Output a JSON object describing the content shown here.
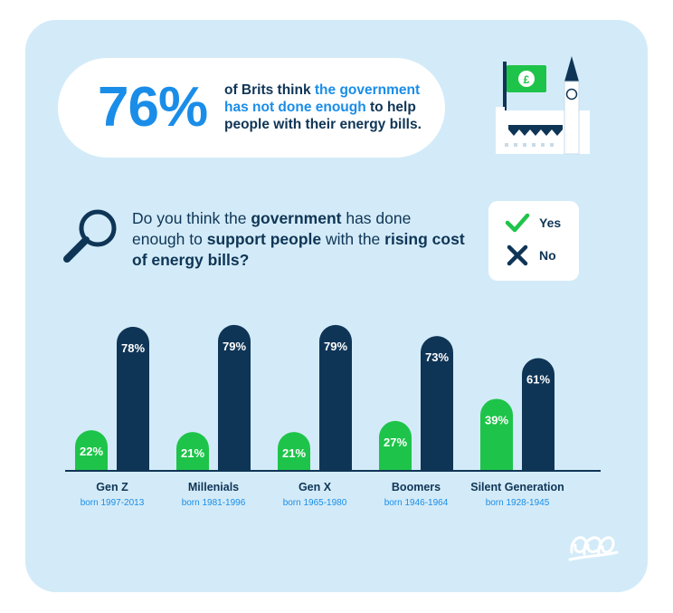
{
  "headline": {
    "percent": "76%",
    "text_before": "of Brits think ",
    "text_highlight": "the government has not done enough",
    "text_after": " to help people with their energy bills."
  },
  "question": {
    "part1": "Do you think the ",
    "bold1": "government",
    "part2": " has done enough to ",
    "bold2": "support people",
    "part3": " with the ",
    "bold3": "rising cost of energy bills?"
  },
  "legend": [
    {
      "label": "Yes",
      "icon": "check-icon",
      "color": "#1ec449"
    },
    {
      "label": "No",
      "icon": "cross-icon",
      "color": "#0f3556"
    }
  ],
  "colors": {
    "yes": "#1ec449",
    "no": "#0f3556",
    "accent": "#1a8de8",
    "background": "#d3ebf8",
    "text": "#0f3556"
  },
  "chart_data": {
    "type": "bar",
    "categories": [
      "Gen Z",
      "Millenials",
      "Gen X",
      "Boomers",
      "Silent Generation"
    ],
    "sublabels": [
      "born 1997-2013",
      "born 1981-1996",
      "born 1965-1980",
      "born 1946-1964",
      "born 1928-1945"
    ],
    "series": [
      {
        "name": "Yes",
        "values": [
          22,
          21,
          21,
          27,
          39
        ],
        "labels": [
          "22%",
          "21%",
          "21%",
          "27%",
          "39%"
        ]
      },
      {
        "name": "No",
        "values": [
          78,
          79,
          79,
          73,
          61
        ],
        "labels": [
          "78%",
          "79%",
          "79%",
          "73%",
          "61%"
        ]
      }
    ],
    "ylim": [
      0,
      100
    ],
    "grid": false
  }
}
